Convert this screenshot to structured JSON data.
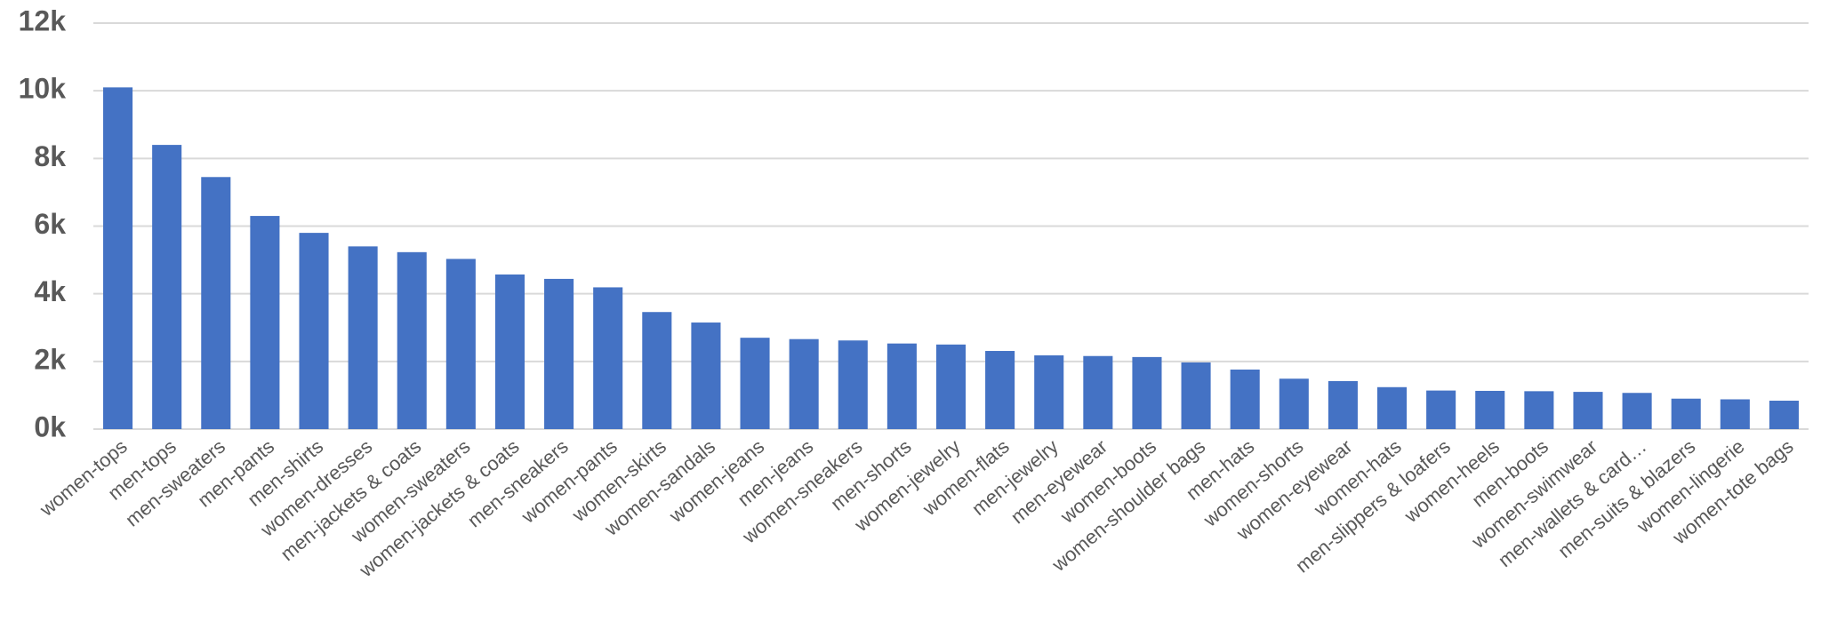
{
  "chart_data": {
    "type": "bar",
    "categories": [
      "women-tops",
      "men-tops",
      "men-sweaters",
      "men-pants",
      "men-shirts",
      "women-dresses",
      "men-jackets & coats",
      "women-sweaters",
      "women-jackets & coats",
      "men-sneakers",
      "women-pants",
      "women-skirts",
      "women-sandals",
      "women-jeans",
      "men-jeans",
      "women-sneakers",
      "men-shorts",
      "women-jewelry",
      "women-flats",
      "men-jewelry",
      "men-eyewear",
      "women-boots",
      "women-shoulder bags",
      "men-hats",
      "women-shorts",
      "women-eyewear",
      "women-hats",
      "men-slippers & loafers",
      "women-heels",
      "men-boots",
      "women-swimwear",
      "men-wallets & card…",
      "men-suits & blazers",
      "women-lingerie",
      "women-tote bags"
    ],
    "values": [
      10100,
      8400,
      7450,
      6300,
      5800,
      5400,
      5230,
      5030,
      4570,
      4440,
      4190,
      3460,
      3150,
      2700,
      2660,
      2620,
      2530,
      2500,
      2310,
      2180,
      2160,
      2130,
      1970,
      1760,
      1490,
      1420,
      1240,
      1140,
      1130,
      1120,
      1100,
      1070,
      900,
      880,
      840
    ],
    "color": "#4472c4",
    "ylim": [
      0,
      12000
    ],
    "yticks": [
      {
        "value": 0,
        "label": "0k"
      },
      {
        "value": 2000,
        "label": "2k"
      },
      {
        "value": 4000,
        "label": "4k"
      },
      {
        "value": 6000,
        "label": "6k"
      },
      {
        "value": 8000,
        "label": "8k"
      },
      {
        "value": 10000,
        "label": "10k"
      },
      {
        "value": 12000,
        "label": "12k"
      }
    ],
    "grid": true
  }
}
